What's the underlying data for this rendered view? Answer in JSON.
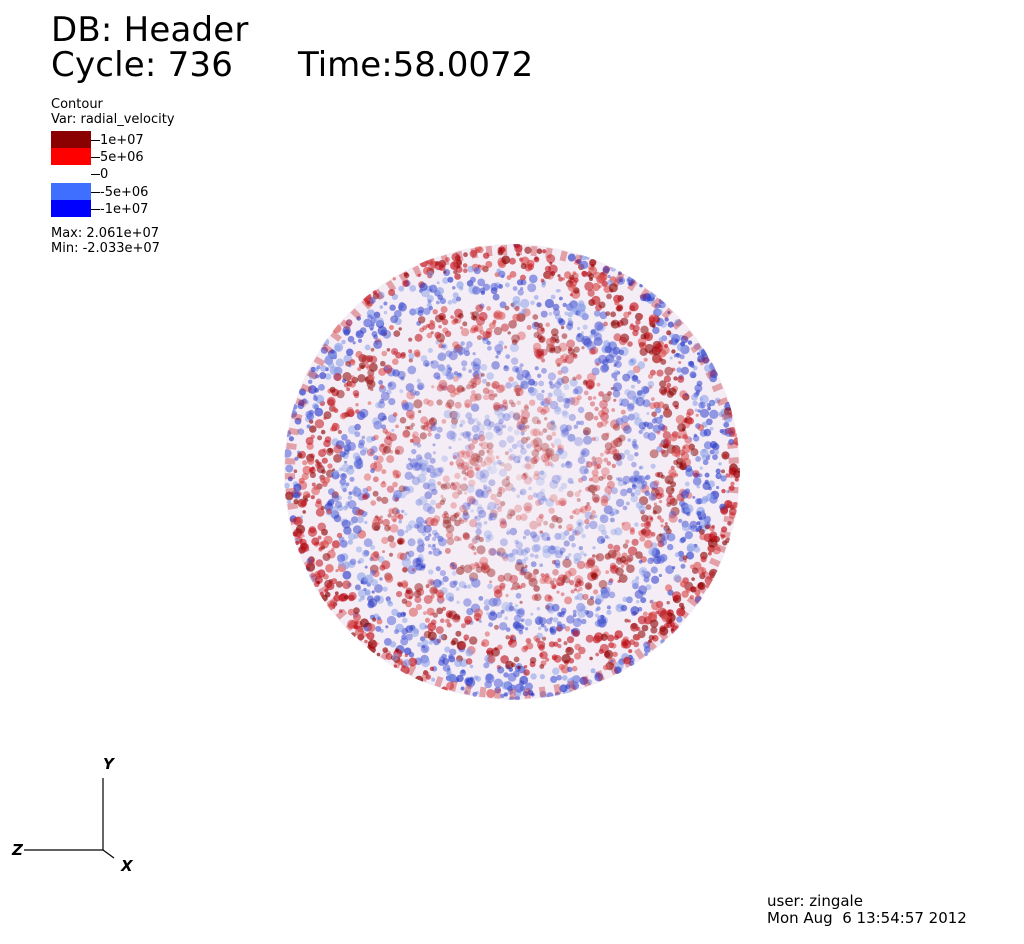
{
  "header": {
    "db": "DB: Header",
    "cycle": "Cycle: 736",
    "time": "Time:58.0072"
  },
  "legend": {
    "plot_type": "Contour",
    "variable": "Var: radial_velocity",
    "levels": [
      {
        "label": "1e+07",
        "color": "#8b0000"
      },
      {
        "label": "5e+06",
        "color": "#ff0000"
      },
      {
        "label": "0",
        "color": "#ffffff"
      },
      {
        "label": "-5e+06",
        "color": "#3f6fff"
      },
      {
        "label": "-1e+07",
        "color": "#0000ff"
      }
    ],
    "max": "Max:  2.061e+07",
    "min": "Min: -2.033e+07"
  },
  "axes": {
    "y": "Y",
    "z": "Z",
    "x": "X"
  },
  "footer": {
    "user": "user: zingale",
    "date": "Mon Aug  6 13:54:57 2012"
  },
  "colors": {
    "positive_dark": "#8b0000",
    "positive": "#c0101a",
    "negative": "#2c3cc8",
    "negative_light": "#8aa0e8"
  }
}
